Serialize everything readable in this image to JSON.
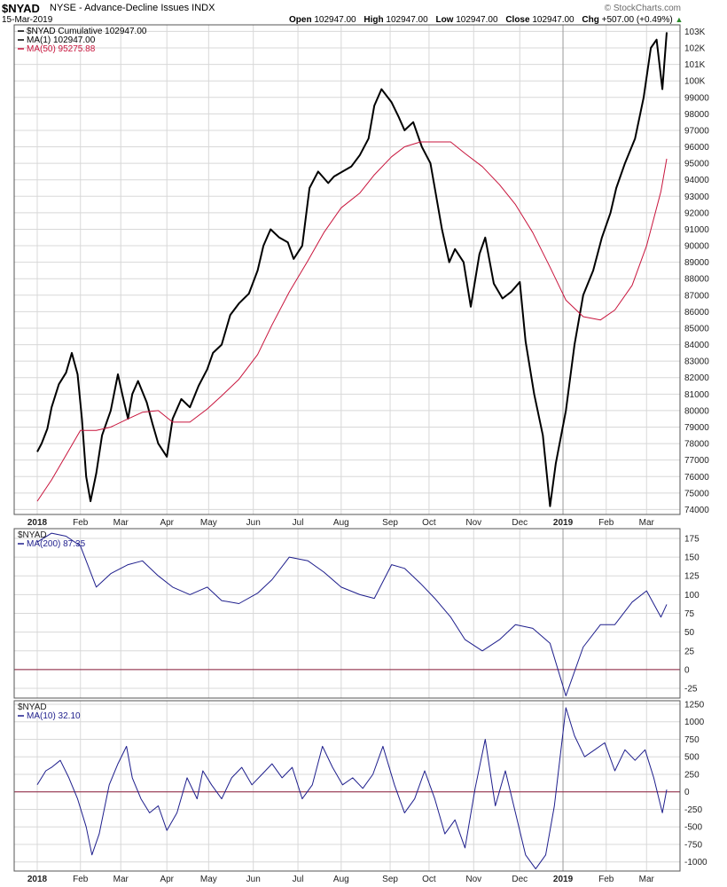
{
  "header": {
    "symbol": "$NYAD",
    "description": "NYSE - Advance-Decline Issues  INDX",
    "date": "15-Mar-2019",
    "open_label": "Open",
    "open": "102947.00",
    "high_label": "High",
    "high": "102947.00",
    "low_label": "Low",
    "low": "102947.00",
    "close_label": "Close",
    "close": "102947.00",
    "chg_label": "Chg",
    "chg": "+507.00 (+0.49%)",
    "watermark": "© StockCharts.com"
  },
  "colors": {
    "price": "#000000",
    "ma50": "#c8143c",
    "indicator": "#1e1e8c",
    "zero": "#8c1e3c",
    "grid": "#d8d8d8"
  },
  "chart_data": [
    {
      "type": "line",
      "panel": "main",
      "xlabel": "",
      "ylabel": "",
      "x_tick_labels": [
        "2018",
        "Feb",
        "Mar",
        "Apr",
        "May",
        "Jun",
        "Jul",
        "Aug",
        "Sep",
        "Oct",
        "Nov",
        "Dec",
        "2019",
        "Feb",
        "Mar"
      ],
      "x_tick_dates": [
        "2018-01-02",
        "2018-02-01",
        "2018-03-01",
        "2018-04-02",
        "2018-05-01",
        "2018-06-01",
        "2018-07-02",
        "2018-08-01",
        "2018-09-04",
        "2018-10-01",
        "2018-11-01",
        "2018-12-03",
        "2019-01-02",
        "2019-02-01",
        "2019-03-01"
      ],
      "y_tick_labels": [
        "103K",
        "102K",
        "101K",
        "100K",
        "99000",
        "98000",
        "97000",
        "96000",
        "95000",
        "94000",
        "93000",
        "92000",
        "91000",
        "90000",
        "89000",
        "88000",
        "87000",
        "86000",
        "85000",
        "84000",
        "83000",
        "82000",
        "81000",
        "80000",
        "79000",
        "78000",
        "77000",
        "76000",
        "75000",
        "74000"
      ],
      "y_tick_values": [
        103000,
        102000,
        101000,
        100000,
        99000,
        98000,
        97000,
        96000,
        95000,
        94000,
        93000,
        92000,
        91000,
        90000,
        89000,
        88000,
        87000,
        86000,
        85000,
        84000,
        83000,
        82000,
        81000,
        80000,
        79000,
        78000,
        77000,
        76000,
        75000,
        74000
      ],
      "ylim": [
        73700,
        103400
      ],
      "legend": [
        "$NYAD Cumulative 102947.00",
        "MA(1) 102947.00",
        "MA(50) 95275.88"
      ],
      "legend_position": "top-left",
      "grid": true,
      "series": [
        {
          "name": "MA(1) 102947.00",
          "color": "#000000",
          "x": [
            "2018-01-02",
            "2018-01-05",
            "2018-01-09",
            "2018-01-12",
            "2018-01-17",
            "2018-01-22",
            "2018-01-26",
            "2018-01-30",
            "2018-02-02",
            "2018-02-05",
            "2018-02-08",
            "2018-02-12",
            "2018-02-16",
            "2018-02-22",
            "2018-02-27",
            "2018-03-02",
            "2018-03-06",
            "2018-03-09",
            "2018-03-13",
            "2018-03-19",
            "2018-03-23",
            "2018-03-27",
            "2018-04-02",
            "2018-04-06",
            "2018-04-12",
            "2018-04-18",
            "2018-04-24",
            "2018-04-30",
            "2018-05-04",
            "2018-05-10",
            "2018-05-16",
            "2018-05-22",
            "2018-05-29",
            "2018-06-04",
            "2018-06-08",
            "2018-06-13",
            "2018-06-19",
            "2018-06-25",
            "2018-06-29",
            "2018-07-05",
            "2018-07-10",
            "2018-07-16",
            "2018-07-23",
            "2018-07-27",
            "2018-08-02",
            "2018-08-08",
            "2018-08-14",
            "2018-08-20",
            "2018-08-24",
            "2018-08-29",
            "2018-09-05",
            "2018-09-10",
            "2018-09-14",
            "2018-09-20",
            "2018-09-26",
            "2018-10-02",
            "2018-10-05",
            "2018-10-10",
            "2018-10-15",
            "2018-10-19",
            "2018-10-25",
            "2018-10-30",
            "2018-11-05",
            "2018-11-09",
            "2018-11-15",
            "2018-11-21",
            "2018-11-27",
            "2018-12-03",
            "2018-12-07",
            "2018-12-13",
            "2018-12-19",
            "2018-12-24",
            "2018-12-28",
            "2019-01-04",
            "2019-01-10",
            "2019-01-16",
            "2019-01-23",
            "2019-01-29",
            "2019-02-04",
            "2019-02-08",
            "2019-02-14",
            "2019-02-21",
            "2019-02-27",
            "2019-03-04",
            "2019-03-08",
            "2019-03-12",
            "2019-03-15"
          ],
          "y": [
            77500,
            78000,
            78900,
            80200,
            81600,
            82300,
            83500,
            82200,
            79500,
            76000,
            74500,
            76200,
            78500,
            80000,
            82200,
            81000,
            79500,
            81000,
            81800,
            80500,
            79200,
            78000,
            77200,
            79500,
            80700,
            80200,
            81500,
            82500,
            83500,
            84000,
            85800,
            86500,
            87100,
            88500,
            90000,
            91000,
            90500,
            90200,
            89200,
            90000,
            93500,
            94500,
            93800,
            94200,
            94500,
            94800,
            95500,
            96500,
            98500,
            99500,
            98700,
            97800,
            97000,
            97500,
            96000,
            95000,
            93500,
            91000,
            89000,
            89800,
            89000,
            86300,
            89500,
            90500,
            87700,
            86800,
            87200,
            87800,
            84200,
            81000,
            78500,
            74200,
            76800,
            80000,
            84000,
            87000,
            88500,
            90500,
            92000,
            93500,
            95000,
            96500,
            99000,
            102000,
            102500,
            99500,
            102947
          ]
        },
        {
          "name": "MA(50) 95275.88",
          "color": "#c8143c",
          "x": [
            "2018-01-02",
            "2018-01-12",
            "2018-01-22",
            "2018-02-01",
            "2018-02-12",
            "2018-02-22",
            "2018-03-06",
            "2018-03-16",
            "2018-03-27",
            "2018-04-06",
            "2018-04-18",
            "2018-04-30",
            "2018-05-10",
            "2018-05-22",
            "2018-06-04",
            "2018-06-14",
            "2018-06-26",
            "2018-07-09",
            "2018-07-20",
            "2018-08-01",
            "2018-08-14",
            "2018-08-24",
            "2018-09-05",
            "2018-09-14",
            "2018-09-25",
            "2018-10-05",
            "2018-10-16",
            "2018-10-26",
            "2018-11-07",
            "2018-11-19",
            "2018-11-30",
            "2018-12-12",
            "2018-12-24",
            "2019-01-04",
            "2019-01-16",
            "2019-01-28",
            "2019-02-07",
            "2019-02-19",
            "2019-03-01",
            "2019-03-11",
            "2019-03-15"
          ],
          "y": [
            74500,
            75800,
            77300,
            78800,
            78800,
            79000,
            79500,
            79900,
            80000,
            79300,
            79300,
            80100,
            80900,
            81900,
            83400,
            85200,
            87200,
            89100,
            90800,
            92300,
            93200,
            94300,
            95400,
            96000,
            96300,
            96300,
            96300,
            95600,
            94800,
            93700,
            92500,
            90800,
            88700,
            86700,
            85700,
            85500,
            86100,
            87600,
            90000,
            93300,
            95276
          ]
        }
      ]
    },
    {
      "type": "line",
      "panel": "ma200",
      "xlabel": "",
      "ylabel": "",
      "y_tick_labels": [
        "175",
        "150",
        "125",
        "100",
        "75",
        "50",
        "25",
        "0",
        "-25"
      ],
      "y_tick_values": [
        175,
        150,
        125,
        100,
        75,
        50,
        25,
        0,
        -25
      ],
      "ylim": [
        -38,
        188
      ],
      "legend": [
        "$NYAD",
        "MA(200) 87.35"
      ],
      "legend_position": "top-left",
      "zero_line": 0,
      "series": [
        {
          "name": "MA(200) 87.35",
          "color": "#1e1e8c",
          "x": [
            "2018-01-02",
            "2018-01-12",
            "2018-01-22",
            "2018-02-01",
            "2018-02-12",
            "2018-02-22",
            "2018-03-06",
            "2018-03-16",
            "2018-03-27",
            "2018-04-06",
            "2018-04-18",
            "2018-04-30",
            "2018-05-10",
            "2018-05-22",
            "2018-06-04",
            "2018-06-14",
            "2018-06-26",
            "2018-07-09",
            "2018-07-20",
            "2018-08-01",
            "2018-08-14",
            "2018-08-24",
            "2018-09-05",
            "2018-09-14",
            "2018-09-25",
            "2018-10-05",
            "2018-10-16",
            "2018-10-26",
            "2018-11-07",
            "2018-11-19",
            "2018-11-30",
            "2018-12-12",
            "2018-12-24",
            "2019-01-04",
            "2019-01-16",
            "2019-01-28",
            "2019-02-07",
            "2019-02-19",
            "2019-03-01",
            "2019-03-11",
            "2019-03-15"
          ],
          "y": [
            170,
            182,
            178,
            165,
            110,
            128,
            140,
            145,
            125,
            110,
            100,
            110,
            92,
            88,
            102,
            120,
            150,
            145,
            130,
            110,
            100,
            95,
            140,
            135,
            115,
            95,
            70,
            40,
            25,
            40,
            60,
            55,
            35,
            -35,
            30,
            60,
            60,
            90,
            105,
            70,
            87
          ]
        }
      ]
    },
    {
      "type": "line",
      "panel": "ma10",
      "xlabel": "",
      "ylabel": "",
      "y_tick_labels": [
        "1250",
        "1000",
        "750",
        "500",
        "250",
        "0",
        "-250",
        "-500",
        "-750",
        "-1000"
      ],
      "y_tick_values": [
        1250,
        1000,
        750,
        500,
        250,
        0,
        -250,
        -500,
        -750,
        -1000
      ],
      "ylim": [
        -1130,
        1300
      ],
      "legend": [
        "$NYAD",
        "MA(10) 32.10"
      ],
      "legend_position": "top-left",
      "zero_line": 0,
      "series": [
        {
          "name": "MA(10) 32.10",
          "color": "#1e1e8c",
          "x": [
            "2018-01-02",
            "2018-01-08",
            "2018-01-12",
            "2018-01-18",
            "2018-01-24",
            "2018-01-30",
            "2018-02-05",
            "2018-02-09",
            "2018-02-14",
            "2018-02-21",
            "2018-02-27",
            "2018-03-05",
            "2018-03-09",
            "2018-03-15",
            "2018-03-21",
            "2018-03-27",
            "2018-04-02",
            "2018-04-09",
            "2018-04-16",
            "2018-04-23",
            "2018-04-27",
            "2018-05-03",
            "2018-05-10",
            "2018-05-17",
            "2018-05-24",
            "2018-05-31",
            "2018-06-07",
            "2018-06-14",
            "2018-06-21",
            "2018-06-28",
            "2018-07-05",
            "2018-07-12",
            "2018-07-19",
            "2018-07-26",
            "2018-08-02",
            "2018-08-09",
            "2018-08-16",
            "2018-08-23",
            "2018-08-30",
            "2018-09-07",
            "2018-09-14",
            "2018-09-21",
            "2018-09-28",
            "2018-10-05",
            "2018-10-12",
            "2018-10-19",
            "2018-10-26",
            "2018-11-02",
            "2018-11-09",
            "2018-11-16",
            "2018-11-23",
            "2018-11-30",
            "2018-12-07",
            "2018-12-14",
            "2018-12-21",
            "2018-12-27",
            "2019-01-04",
            "2019-01-10",
            "2019-01-17",
            "2019-01-24",
            "2019-01-31",
            "2019-02-07",
            "2019-02-14",
            "2019-02-21",
            "2019-02-28",
            "2019-03-06",
            "2019-03-12",
            "2019-03-15"
          ],
          "y": [
            100,
            300,
            350,
            450,
            200,
            -100,
            -500,
            -900,
            -600,
            100,
            400,
            650,
            200,
            -100,
            -300,
            -200,
            -550,
            -300,
            200,
            -100,
            300,
            100,
            -100,
            200,
            350,
            100,
            250,
            400,
            200,
            350,
            -100,
            100,
            650,
            350,
            100,
            200,
            50,
            250,
            650,
            100,
            -300,
            -100,
            300,
            -100,
            -600,
            -400,
            -800,
            50,
            750,
            -200,
            300,
            -300,
            -900,
            -1100,
            -900,
            -200,
            1200,
            800,
            500,
            600,
            700,
            300,
            600,
            450,
            600,
            200,
            -300,
            32
          ]
        }
      ]
    }
  ]
}
